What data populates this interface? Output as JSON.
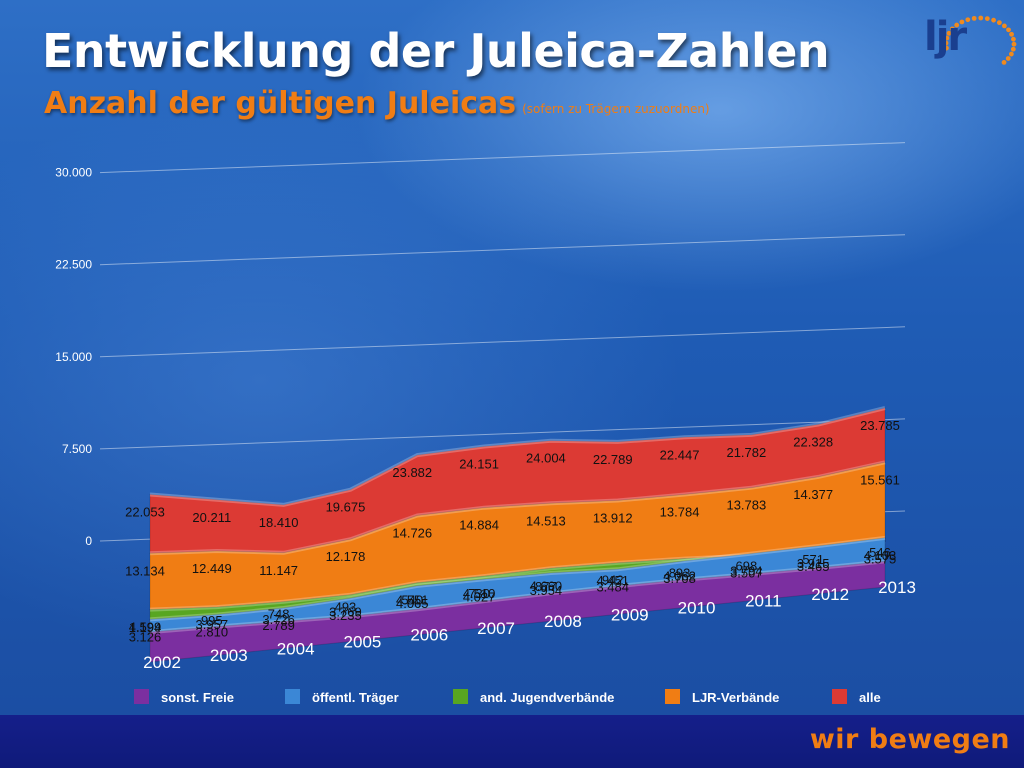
{
  "header": {
    "title": "Entwicklung der Juleica-Zahlen",
    "subtitle": "Anzahl der gültigen Juleicas",
    "subtitle_note": "(sofern zu Trägern zuzuordnen)"
  },
  "logo": {
    "text": "ljr"
  },
  "footer": {
    "slogan": "wir bewegen"
  },
  "chart_data": {
    "type": "area",
    "categories": [
      "2002",
      "2003",
      "2004",
      "2005",
      "2006",
      "2007",
      "2008",
      "2009",
      "2010",
      "2011",
      "2012",
      "2013"
    ],
    "ylim": [
      0,
      30000
    ],
    "yticks": [
      {
        "value": 0,
        "label": "0"
      },
      {
        "value": 7500,
        "label": "7.500"
      },
      {
        "value": 15000,
        "label": "15.000"
      },
      {
        "value": 22500,
        "label": "22.500"
      },
      {
        "value": 30000,
        "label": "30.000"
      }
    ],
    "grid": true,
    "legend_position": "bottom",
    "series": [
      {
        "name": "sonst. Freie",
        "color": "#7b2fa0",
        "values": [
          1194,
          995,
          748,
          493,
          540,
          730,
          877,
          942,
          893,
          698,
          571,
          546
        ],
        "labels": [
          "1.194",
          "995",
          "748",
          "493",
          "540",
          "730",
          "877",
          "942",
          "893",
          "698",
          "571",
          "546"
        ]
      },
      {
        "name": "öffentl. Träger",
        "color": "#3b87d6",
        "values": [
          3126,
          2810,
          2789,
          3235,
          4065,
          4027,
          3954,
          3484,
          3708,
          3794,
          3915,
          4103
        ],
        "labels": [
          "3.126",
          "2.810",
          "2.789",
          "3.235",
          "4.065",
          "4.027",
          "3.954",
          "3.484",
          "3.708",
          "3.794",
          "3.915",
          "4.103"
        ]
      },
      {
        "name": "and. Jugendverbände",
        "color": "#58a621",
        "values": [
          4599,
          3957,
          3726,
          3769,
          4551,
          4510,
          4660,
          4451,
          4062,
          3507,
          3465,
          3575
        ],
        "labels": [
          "4.599",
          "3.957",
          "3.726",
          "3.769",
          "4.551",
          "4.510",
          "4.660",
          "4.451",
          "4.062",
          "3.507",
          "3.465",
          "3.575"
        ]
      },
      {
        "name": "LJR-Verbände",
        "color": "#f07d14",
        "values": [
          13134,
          12449,
          11147,
          12178,
          14726,
          14884,
          14513,
          13912,
          13784,
          13783,
          14377,
          15561
        ],
        "labels": [
          "13.134",
          "12.449",
          "11.147",
          "12.178",
          "14.726",
          "14.884",
          "14.513",
          "13.912",
          "13.784",
          "13.783",
          "14.377",
          "15.561"
        ]
      },
      {
        "name": "alle",
        "color": "#dc3a34",
        "values": [
          22053,
          20211,
          18410,
          19675,
          23882,
          24151,
          24004,
          22789,
          22447,
          21782,
          22328,
          23785
        ],
        "labels": [
          "22.053",
          "20.211",
          "18.410",
          "19.675",
          "23.882",
          "24.151",
          "24.004",
          "22.789",
          "22.447",
          "21.782",
          "22.328",
          "23.785"
        ]
      }
    ]
  }
}
